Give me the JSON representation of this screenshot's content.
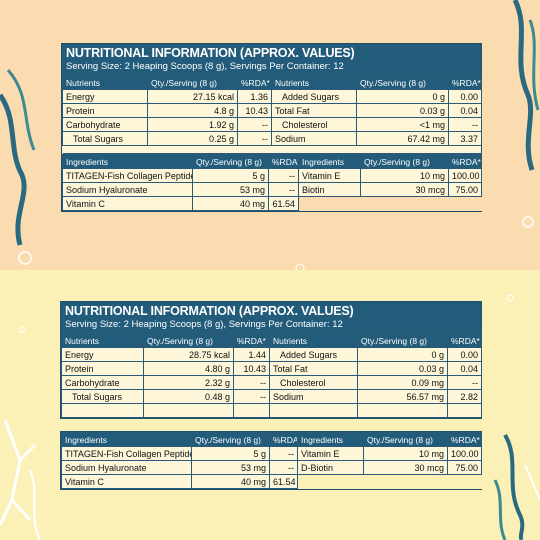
{
  "top": {
    "title": "NUTRITIONAL INFORMATION (APPROX. VALUES)",
    "serving": "Serving Size: 2 Heaping Scoops (8 g), Servings Per Container: 12",
    "headers": {
      "nutrients": "Nutrients",
      "qty": "Qty./Serving (8 g)",
      "rda": "%RDA*",
      "ingredients": "Ingredients"
    },
    "nutrients": [
      {
        "l_name": "Energy",
        "l_qty": "27.15 kcal",
        "l_rda": "1.36",
        "r_name": "Added Sugars",
        "r_qty": "0 g",
        "r_rda": "0.00"
      },
      {
        "l_name": "Protein",
        "l_qty": "4.8 g",
        "l_rda": "10.43",
        "r_name": "Total Fat",
        "r_qty": "0.03 g",
        "r_rda": "0.04"
      },
      {
        "l_name": "Carbohydrate",
        "l_qty": "1.92 g",
        "l_rda": "--",
        "r_name": "Cholesterol",
        "r_qty": "<1 mg",
        "r_rda": "--"
      },
      {
        "l_name": "Total Sugars",
        "l_qty": "0.25 g",
        "l_rda": "--",
        "r_name": "Sodium",
        "r_qty": "67.42 mg",
        "r_rda": "3.37"
      }
    ],
    "ingredients": [
      {
        "l_name": "TITAGEN-Fish Collagen Peptide™",
        "l_qty": "5 g",
        "l_rda": "--",
        "r_name": "Vitamin E",
        "r_qty": "10 mg",
        "r_rda": "100.00"
      },
      {
        "l_name": "Sodium Hyaluronate",
        "l_qty": "53 mg",
        "l_rda": "--",
        "r_name": "Biotin",
        "r_qty": "30 mcg",
        "r_rda": "75.00"
      },
      {
        "l_name": "Vitamin C",
        "l_qty": "40 mg",
        "l_rda": "61.54",
        "r_name": "",
        "r_qty": "",
        "r_rda": ""
      }
    ]
  },
  "bottom": {
    "title": "NUTRITIONAL INFORMATION (APPROX. VALUES)",
    "serving": "Serving Size: 2 Heaping Scoops (8 g), Servings Per Container: 12",
    "headers": {
      "nutrients": "Nutrients",
      "qty": "Qty./Serving (8 g)",
      "rda": "%RDA*",
      "ingredients": "Ingredients"
    },
    "nutrients": [
      {
        "l_name": "Energy",
        "l_qty": "28.75 kcal",
        "l_rda": "1.44",
        "r_name": "Added Sugars",
        "r_qty": "0 g",
        "r_rda": "0.00"
      },
      {
        "l_name": "Protein",
        "l_qty": "4.80 g",
        "l_rda": "10.43",
        "r_name": "Total Fat",
        "r_qty": "0.03 g",
        "r_rda": "0.04"
      },
      {
        "l_name": "Carbohydrate",
        "l_qty": "2.32 g",
        "l_rda": "--",
        "r_name": "Cholesterol",
        "r_qty": "0.09 mg",
        "r_rda": "--"
      },
      {
        "l_name": "Total Sugars",
        "l_qty": "0.48 g",
        "l_rda": "--",
        "r_name": "Sodium",
        "r_qty": "56.57 mg",
        "r_rda": "2.82"
      }
    ],
    "ingredients": [
      {
        "l_name": "TITAGEN-Fish Collagen Peptide™",
        "l_qty": "5 g",
        "l_rda": "--",
        "r_name": "Vitamin E",
        "r_qty": "10 mg",
        "r_rda": "100.00"
      },
      {
        "l_name": "Sodium Hyaluronate",
        "l_qty": "53 mg",
        "l_rda": "--",
        "r_name": "D-Biotin",
        "r_qty": "30 mcg",
        "r_rda": "75.00"
      },
      {
        "l_name": "Vitamin C",
        "l_qty": "40 mg",
        "l_rda": "61.54",
        "r_name": "",
        "r_qty": "",
        "r_rda": ""
      }
    ]
  }
}
